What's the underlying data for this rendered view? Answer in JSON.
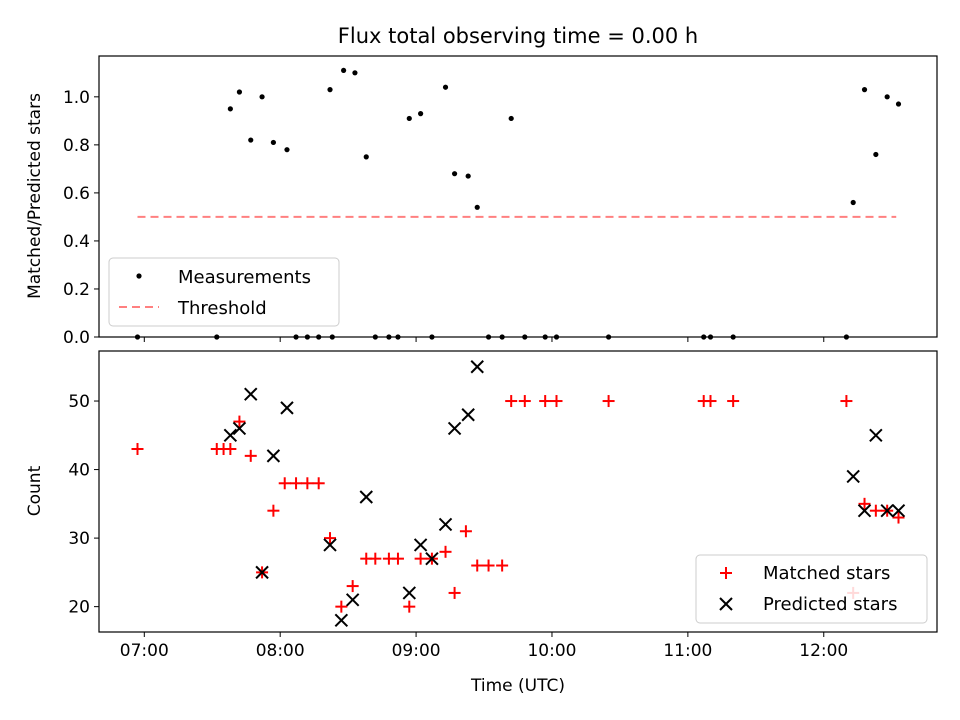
{
  "chart_data": [
    {
      "type": "scatter",
      "title": "Flux total observing time = 0.00 h",
      "xlabel": "",
      "ylabel": "Matched/Predicted stars",
      "xlim": [
        "06:40",
        "12:50"
      ],
      "ylim": [
        0,
        1.17
      ],
      "yticks": [
        0.0,
        0.2,
        0.4,
        0.6,
        0.8,
        1.0
      ],
      "ytick_labels": [
        "0.0",
        "0.2",
        "0.4",
        "0.6",
        "0.8",
        "1.0"
      ],
      "legend": {
        "placement": "lower-left",
        "entries": [
          "Measurements",
          "Threshold"
        ]
      },
      "grid": false,
      "series": [
        {
          "name": "Measurements",
          "color": "#000000",
          "marker": "dot",
          "x": [
            "06:57",
            "07:32",
            "07:38",
            "07:42",
            "07:47",
            "07:52",
            "07:57",
            "08:03",
            "08:07",
            "08:12",
            "08:17",
            "08:22",
            "08:23",
            "08:28",
            "08:33",
            "08:38",
            "08:42",
            "08:48",
            "08:52",
            "08:57",
            "09:02",
            "09:07",
            "09:13",
            "09:17",
            "09:23",
            "09:27",
            "09:32",
            "09:38",
            "09:42",
            "09:48",
            "09:57",
            "10:02",
            "10:25",
            "11:07",
            "11:10",
            "11:20",
            "12:10",
            "12:13",
            "12:18",
            "12:23",
            "12:28",
            "12:33"
          ],
          "y": [
            0.0,
            0.0,
            0.95,
            1.02,
            0.82,
            1.0,
            0.81,
            0.78,
            0.0,
            0.0,
            0.0,
            1.03,
            0.0,
            1.11,
            1.1,
            0.75,
            0.0,
            0.0,
            0.0,
            0.91,
            0.93,
            0.0,
            1.04,
            0.68,
            0.67,
            0.54,
            0.0,
            0.0,
            0.91,
            0.0,
            0.0,
            0.0,
            0.0,
            0.0,
            0.0,
            0.0,
            0.0,
            0.56,
            1.03,
            0.76,
            1.0,
            0.97
          ]
        },
        {
          "name": "Threshold",
          "color": "#ff8080",
          "linestyle": "dashed",
          "x": [
            "06:57",
            "12:32"
          ],
          "y": [
            0.5,
            0.5
          ]
        }
      ]
    },
    {
      "type": "scatter",
      "title": "",
      "xlabel": "Time (UTC)",
      "ylabel": "Count",
      "xlim": [
        "06:40",
        "12:50"
      ],
      "ylim": [
        16.3,
        57.3
      ],
      "xticks": [
        "07:00",
        "08:00",
        "09:00",
        "10:00",
        "11:00",
        "12:00"
      ],
      "yticks": [
        20,
        30,
        40,
        50
      ],
      "ytick_labels": [
        "20",
        "30",
        "40",
        "50"
      ],
      "legend": {
        "placement": "lower-right",
        "entries": [
          "Matched stars",
          "Predicted stars"
        ]
      },
      "grid": false,
      "series": [
        {
          "name": "Matched stars",
          "color": "#ff0000",
          "marker": "plus",
          "x": [
            "06:57",
            "07:32",
            "07:35",
            "07:38",
            "07:42",
            "07:47",
            "07:52",
            "07:57",
            "08:02",
            "08:07",
            "08:12",
            "08:17",
            "08:22",
            "08:27",
            "08:32",
            "08:38",
            "08:42",
            "08:48",
            "08:52",
            "08:57",
            "09:02",
            "09:07",
            "09:13",
            "09:17",
            "09:22",
            "09:27",
            "09:32",
            "09:38",
            "09:42",
            "09:48",
            "09:57",
            "10:02",
            "10:25",
            "11:07",
            "11:10",
            "11:20",
            "12:10",
            "12:13",
            "12:18",
            "12:23",
            "12:28",
            "12:33"
          ],
          "y": [
            43,
            43,
            43,
            43,
            47,
            42,
            25,
            34,
            38,
            38,
            38,
            38,
            30,
            20,
            23,
            27,
            27,
            27,
            27,
            20,
            27,
            27,
            28,
            22,
            31,
            26,
            26,
            26,
            50,
            50,
            50,
            50,
            50,
            50,
            50,
            50,
            50,
            22,
            35,
            34,
            34,
            33
          ]
        },
        {
          "name": "Predicted stars",
          "color": "#000000",
          "marker": "x",
          "x": [
            "07:38",
            "07:42",
            "07:47",
            "07:52",
            "07:57",
            "08:03",
            "08:22",
            "08:27",
            "08:32",
            "08:38",
            "08:57",
            "09:02",
            "09:07",
            "09:13",
            "09:17",
            "09:23",
            "09:27",
            "12:13",
            "12:18",
            "12:23",
            "12:28",
            "12:33"
          ],
          "y": [
            45,
            46,
            51,
            25,
            42,
            49,
            29,
            18,
            21,
            36,
            22,
            29,
            27,
            32,
            46,
            48,
            55,
            39,
            34,
            45,
            34,
            34
          ]
        }
      ]
    }
  ]
}
